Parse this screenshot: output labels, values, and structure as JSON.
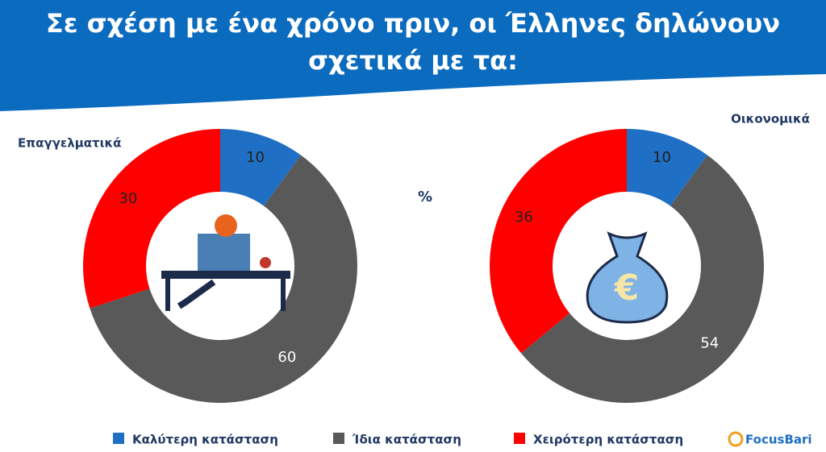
{
  "title": "Σε σχέση με ένα χρόνο πριν, οι Έλληνες δηλώνουν σχετικά με τα:",
  "unit_label": "%",
  "logo": "FocusBari",
  "chart_data": [
    {
      "type": "pie",
      "title": "Επαγγελματικά",
      "categories": [
        "Καλύτερη κατάσταση",
        "Ίδια κατάσταση",
        "Χειρότερη κατάσταση"
      ],
      "values": [
        10,
        60,
        30
      ],
      "colors": [
        "#1f6fc4",
        "#595959",
        "#ff0000"
      ]
    },
    {
      "type": "pie",
      "title": "Οικονομικά",
      "categories": [
        "Καλύτερη κατάσταση",
        "Ίδια κατάσταση",
        "Χειρότερη κατάσταση"
      ],
      "values": [
        10,
        54,
        36
      ],
      "colors": [
        "#1f6fc4",
        "#595959",
        "#ff0000"
      ]
    }
  ]
}
